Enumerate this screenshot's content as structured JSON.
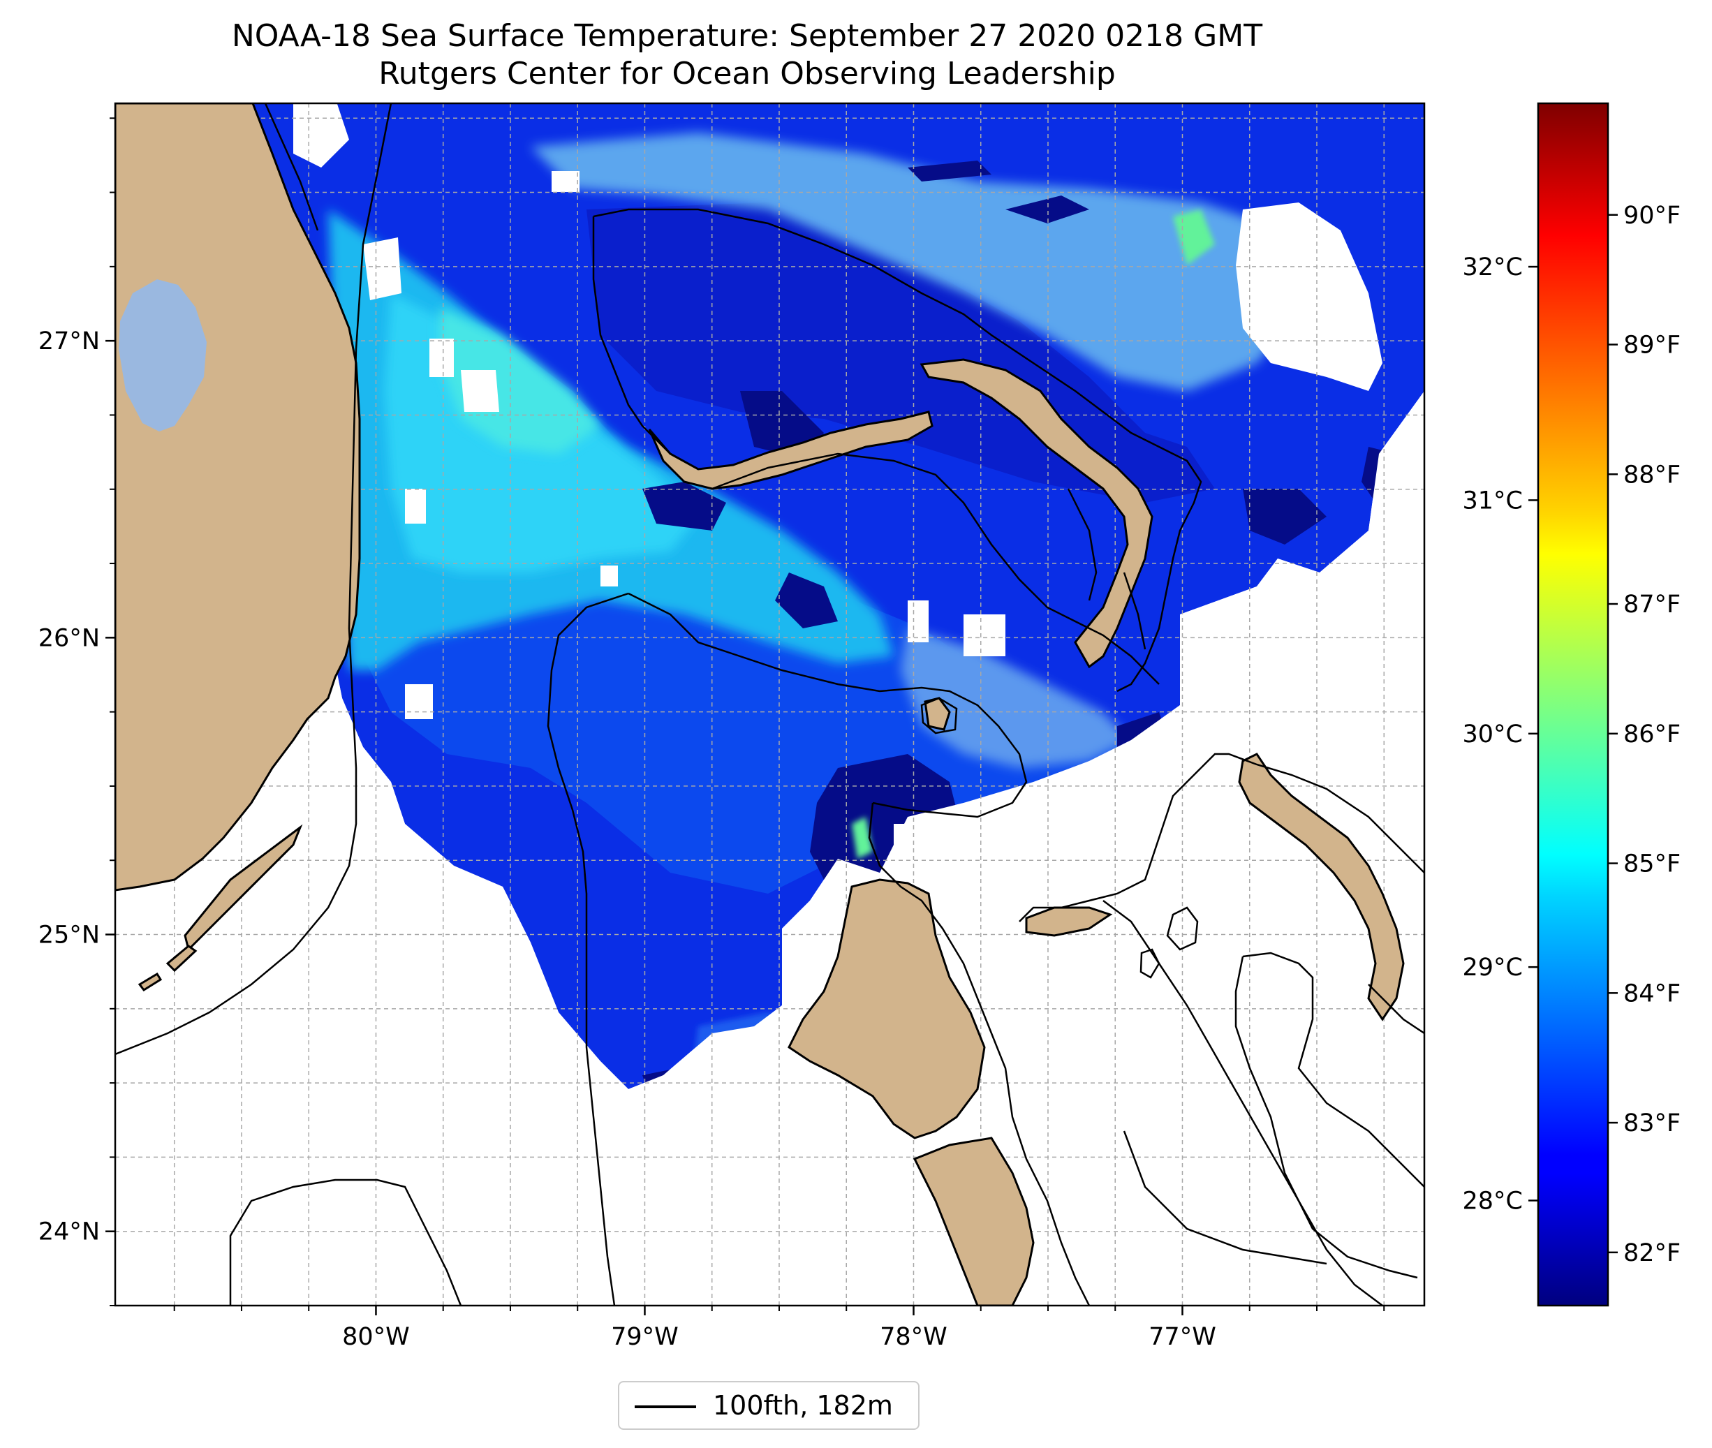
{
  "title": {
    "line1": "NOAA-18 Sea Surface Temperature: September 27 2020 0218 GMT",
    "line2": "Rutgers Center for Ocean Observing Leadership"
  },
  "map": {
    "lon_range": [
      -80.97,
      -76.1
    ],
    "lat_range": [
      23.75,
      27.8
    ],
    "lon_ticks": [
      {
        "value": -80,
        "label": "80°W"
      },
      {
        "value": -79,
        "label": "79°W"
      },
      {
        "value": -78,
        "label": "78°W"
      },
      {
        "value": -77,
        "label": "77°W"
      }
    ],
    "lat_ticks": [
      {
        "value": 27,
        "label": "27°N"
      },
      {
        "value": 26,
        "label": "26°N"
      },
      {
        "value": 25,
        "label": "25°N"
      },
      {
        "value": 24,
        "label": "24°N"
      }
    ],
    "grid": true,
    "land_color": "#d2b48c",
    "lake_color": "#9ab8e0",
    "no_data_color": "#ffffff",
    "variable": "Sea Surface Temperature"
  },
  "colorbar": {
    "colormap": "jet",
    "range_c": [
      27.55,
      32.7
    ],
    "celsius_ticks": [
      {
        "value": 28,
        "label": "28°C"
      },
      {
        "value": 29,
        "label": "29°C"
      },
      {
        "value": 30,
        "label": "30°C"
      },
      {
        "value": 31,
        "label": "31°C"
      },
      {
        "value": 32,
        "label": "32°C"
      }
    ],
    "fahrenheit_ticks": [
      {
        "value": 82,
        "label": "82°F"
      },
      {
        "value": 83,
        "label": "83°F"
      },
      {
        "value": 84,
        "label": "84°F"
      },
      {
        "value": 85,
        "label": "85°F"
      },
      {
        "value": 86,
        "label": "86°F"
      },
      {
        "value": 87,
        "label": "87°F"
      },
      {
        "value": 88,
        "label": "88°F"
      },
      {
        "value": 89,
        "label": "89°F"
      },
      {
        "value": 90,
        "label": "90°F"
      }
    ]
  },
  "legend": {
    "entries": [
      {
        "label": "100fth, 182m",
        "color": "#000000"
      }
    ],
    "placement": "bottom-center"
  }
}
